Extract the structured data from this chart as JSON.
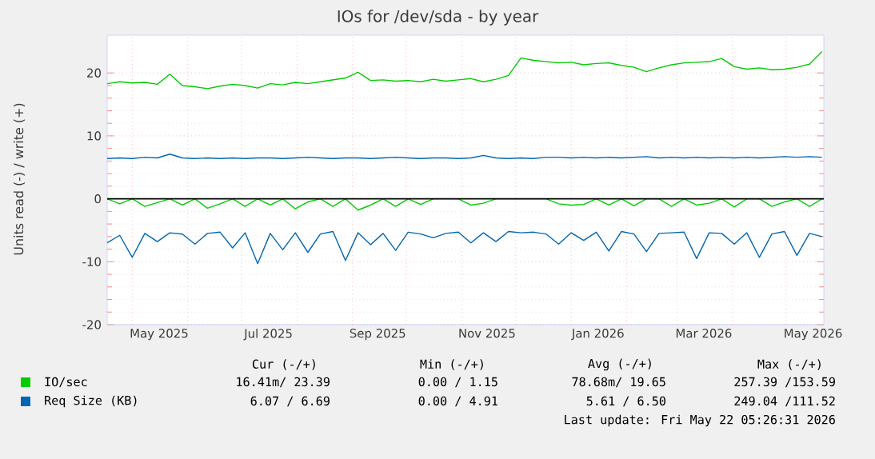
{
  "chart_data": {
    "type": "line",
    "title": "IOs for /dev/sda - by year",
    "ylabel": "Units read (-) / write (+)",
    "x": [
      "2025-04-17",
      "2025-04-24",
      "2025-05-01",
      "2025-05-08",
      "2025-05-15",
      "2025-05-22",
      "2025-05-29",
      "2025-06-05",
      "2025-06-12",
      "2025-06-19",
      "2025-06-26",
      "2025-07-03",
      "2025-07-10",
      "2025-07-17",
      "2025-07-24",
      "2025-07-31",
      "2025-08-07",
      "2025-08-14",
      "2025-08-21",
      "2025-08-28",
      "2025-09-04",
      "2025-09-11",
      "2025-09-18",
      "2025-09-25",
      "2025-10-02",
      "2025-10-09",
      "2025-10-16",
      "2025-10-23",
      "2025-10-30",
      "2025-11-06",
      "2025-11-13",
      "2025-11-20",
      "2025-11-27",
      "2025-12-04",
      "2025-12-11",
      "2025-12-18",
      "2025-12-25",
      "2026-01-01",
      "2026-01-08",
      "2026-01-15",
      "2026-01-22",
      "2026-01-29",
      "2026-02-05",
      "2026-02-12",
      "2026-02-19",
      "2026-02-26",
      "2026-03-05",
      "2026-03-12",
      "2026-03-19",
      "2026-03-26",
      "2026-04-02",
      "2026-04-09",
      "2026-04-16",
      "2026-04-23",
      "2026-04-30",
      "2026-05-07",
      "2026-05-14",
      "2026-05-21"
    ],
    "series": [
      {
        "name": "IO/sec",
        "color": "#00cc00",
        "values": [
          18.3,
          18.6,
          18.4,
          18.5,
          18.2,
          19.8,
          18.0,
          17.8,
          17.5,
          17.9,
          18.2,
          18.0,
          17.6,
          18.3,
          18.1,
          18.5,
          18.3,
          18.6,
          18.9,
          19.2,
          20.1,
          18.8,
          18.9,
          18.7,
          18.8,
          18.6,
          19.0,
          18.7,
          18.9,
          19.1,
          18.6,
          19.0,
          19.6,
          22.4,
          22.0,
          21.8,
          21.6,
          21.7,
          21.3,
          21.5,
          21.6,
          21.2,
          20.9,
          20.2,
          20.8,
          21.3,
          21.6,
          21.7,
          21.8,
          22.3,
          21.0,
          20.6,
          20.8,
          20.5,
          20.6,
          20.9,
          21.4,
          23.4
        ]
      },
      {
        "color": "#00cc00",
        "values": [
          0,
          -0.8,
          0,
          -1.2,
          -0.6,
          0,
          -1.0,
          0,
          -1.5,
          -0.8,
          0,
          -1.2,
          0,
          -1.0,
          0,
          -1.6,
          -0.5,
          0,
          -1.2,
          0,
          -1.8,
          -1.0,
          0,
          -1.2,
          0,
          -0.9,
          0,
          0,
          0,
          -1.0,
          -0.7,
          0,
          0,
          0,
          0,
          0,
          -0.8,
          -1.0,
          -0.9,
          0,
          -1.0,
          0,
          -1.1,
          0,
          0,
          -1.2,
          0,
          -1.0,
          -0.7,
          0,
          -1.3,
          0,
          0,
          -1.2,
          -0.5,
          0,
          -1.2,
          0
        ]
      },
      {
        "name": "Req Size (KB)",
        "color": "#0066b3",
        "values": [
          6.4,
          6.5,
          6.4,
          6.6,
          6.5,
          7.1,
          6.5,
          6.4,
          6.5,
          6.4,
          6.5,
          6.4,
          6.5,
          6.5,
          6.4,
          6.5,
          6.6,
          6.5,
          6.4,
          6.5,
          6.5,
          6.4,
          6.5,
          6.6,
          6.5,
          6.4,
          6.5,
          6.5,
          6.4,
          6.5,
          6.9,
          6.5,
          6.4,
          6.5,
          6.4,
          6.6,
          6.6,
          6.5,
          6.6,
          6.5,
          6.6,
          6.5,
          6.6,
          6.7,
          6.5,
          6.6,
          6.5,
          6.6,
          6.5,
          6.6,
          6.5,
          6.6,
          6.5,
          6.6,
          6.7,
          6.6,
          6.7,
          6.6
        ]
      },
      {
        "color": "#0066b3",
        "values": [
          -7.0,
          -5.8,
          -9.3,
          -5.5,
          -6.8,
          -5.4,
          -5.6,
          -7.2,
          -5.5,
          -5.3,
          -7.8,
          -5.4,
          -10.3,
          -5.5,
          -8.1,
          -5.4,
          -8.5,
          -5.6,
          -5.2,
          -9.8,
          -5.4,
          -7.3,
          -5.5,
          -8.2,
          -5.3,
          -5.6,
          -6.2,
          -5.5,
          -5.3,
          -7.0,
          -5.4,
          -6.8,
          -5.2,
          -5.4,
          -5.3,
          -5.6,
          -7.2,
          -5.4,
          -6.6,
          -5.3,
          -8.3,
          -5.2,
          -5.6,
          -8.4,
          -5.5,
          -5.4,
          -5.3,
          -9.5,
          -5.4,
          -5.5,
          -7.2,
          -5.4,
          -9.3,
          -5.6,
          -5.2,
          -9.0,
          -5.5,
          -6.0
        ]
      }
    ],
    "xlim": [
      "2025-04-17",
      "2026-05-22"
    ],
    "xticks": [
      {
        "value": "2025-05-16",
        "label": "May 2025"
      },
      {
        "value": "2025-07-16",
        "label": "Jul 2025"
      },
      {
        "value": "2025-09-15",
        "label": "Sep 2025"
      },
      {
        "value": "2025-11-15",
        "label": "Nov 2025"
      },
      {
        "value": "2026-01-16",
        "label": "Jan 2026"
      },
      {
        "value": "2026-03-16",
        "label": "Mar 2026"
      },
      {
        "value": "2026-05-16",
        "label": "May 2026"
      }
    ],
    "ylim": [
      -20,
      26
    ],
    "yticks": [
      -20,
      -10,
      0,
      10,
      20
    ],
    "grid": true,
    "legend": "bottom",
    "marker": "none",
    "line_style": "solid",
    "ref_lines": [
      {
        "axis": "y",
        "value": 0,
        "color": "#000000"
      }
    ],
    "annotations": [
      "Cur (-/+)",
      "Min (-/+)",
      "Avg (-/+)",
      "Max (-/+)",
      "16.41m/ 23.39",
      "0.00 /  1.15",
      "78.68m/ 19.65",
      "257.39 /153.59",
      "6.07 /  6.69",
      "0.00 /  4.91",
      "5.61 /  6.50",
      "249.04 /111.52",
      "Last update: Fri May 22 05:26:31 2026"
    ]
  }
}
